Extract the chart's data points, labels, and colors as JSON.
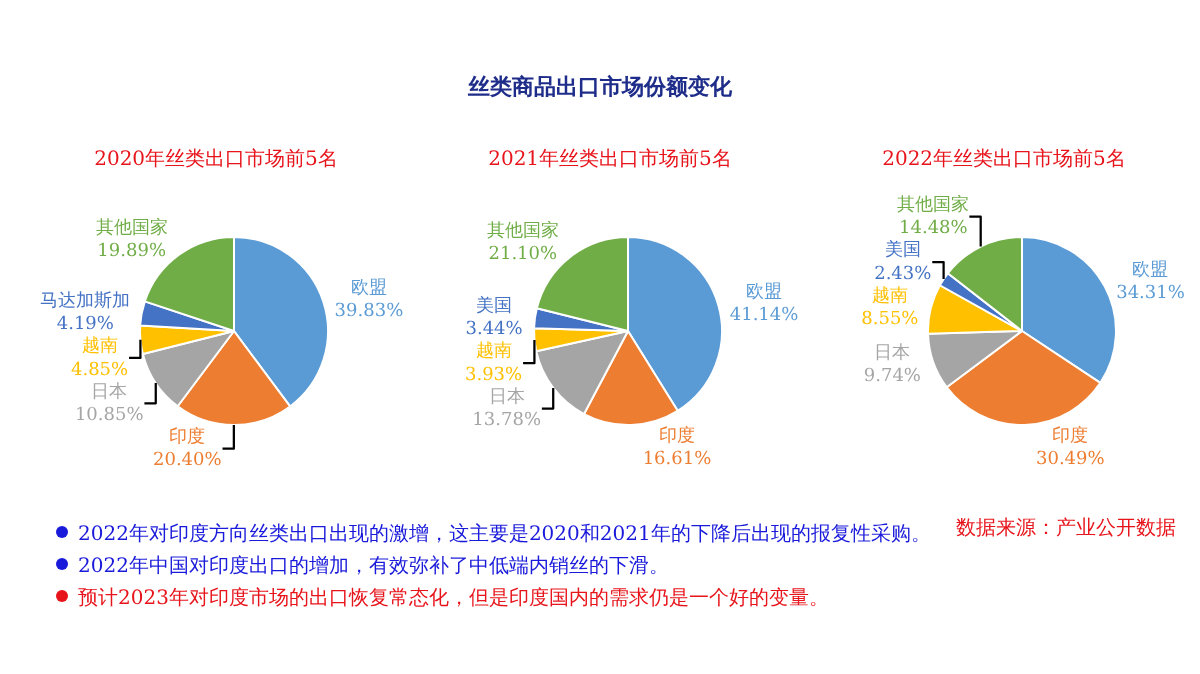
{
  "chart_data": [
    {
      "type": "other",
      "title": "丝类商品出口市场份额变化"
    },
    {
      "type": "pie",
      "title": "2020年丝类出口市场前5名",
      "categories": [
        "欧盟",
        "印度",
        "日本",
        "越南",
        "马达加斯加",
        "其他国家"
      ],
      "values": [
        39.83,
        20.4,
        10.85,
        4.85,
        4.19,
        19.89
      ],
      "colors": [
        "#5b9bd5",
        "#ed7d31",
        "#a5a5a5",
        "#ffc000",
        "#4472c4",
        "#70ad47"
      ],
      "value_labels": [
        "39.83%",
        "20.40%",
        "10.85%",
        "4.85%",
        "4.19%",
        "19.89%"
      ],
      "legend": false
    },
    {
      "type": "pie",
      "title": "2021年丝类出口市场前5名",
      "categories": [
        "欧盟",
        "印度",
        "日本",
        "越南",
        "美国",
        "其他国家"
      ],
      "values": [
        41.14,
        16.61,
        13.78,
        3.93,
        3.44,
        21.1
      ],
      "colors": [
        "#5b9bd5",
        "#ed7d31",
        "#a5a5a5",
        "#ffc000",
        "#4472c4",
        "#70ad47"
      ],
      "value_labels": [
        "41.14%",
        "16.61%",
        "13.78%",
        "3.93%",
        "3.44%",
        "21.10%"
      ],
      "legend": false
    },
    {
      "type": "pie",
      "title": "2022年丝类出口市场前5名",
      "categories": [
        "欧盟",
        "印度",
        "日本",
        "越南",
        "美国",
        "其他国家"
      ],
      "values": [
        34.31,
        30.49,
        9.74,
        8.55,
        2.43,
        14.48
      ],
      "colors": [
        "#5b9bd5",
        "#ed7d31",
        "#a5a5a5",
        "#ffc000",
        "#4472c4",
        "#70ad47"
      ],
      "value_labels": [
        "34.31%",
        "30.49%",
        "9.74%",
        "8.55%",
        "2.43%",
        "14.48%"
      ],
      "legend": false
    },
    {
      "type": "other",
      "annotations": [
        "2022年对印度方向丝类出口出现的激增，这主要是2020和2021年的下降后出现的报复性采购。",
        "2022年中国对印度出口的增加，有效弥补了中低端内销丝的下滑。",
        "预计2023年对印度市场的出口恢复常态化，但是印度国内的需求仍是一个好的变量。",
        "数据来源：产业公开数据"
      ]
    }
  ]
}
